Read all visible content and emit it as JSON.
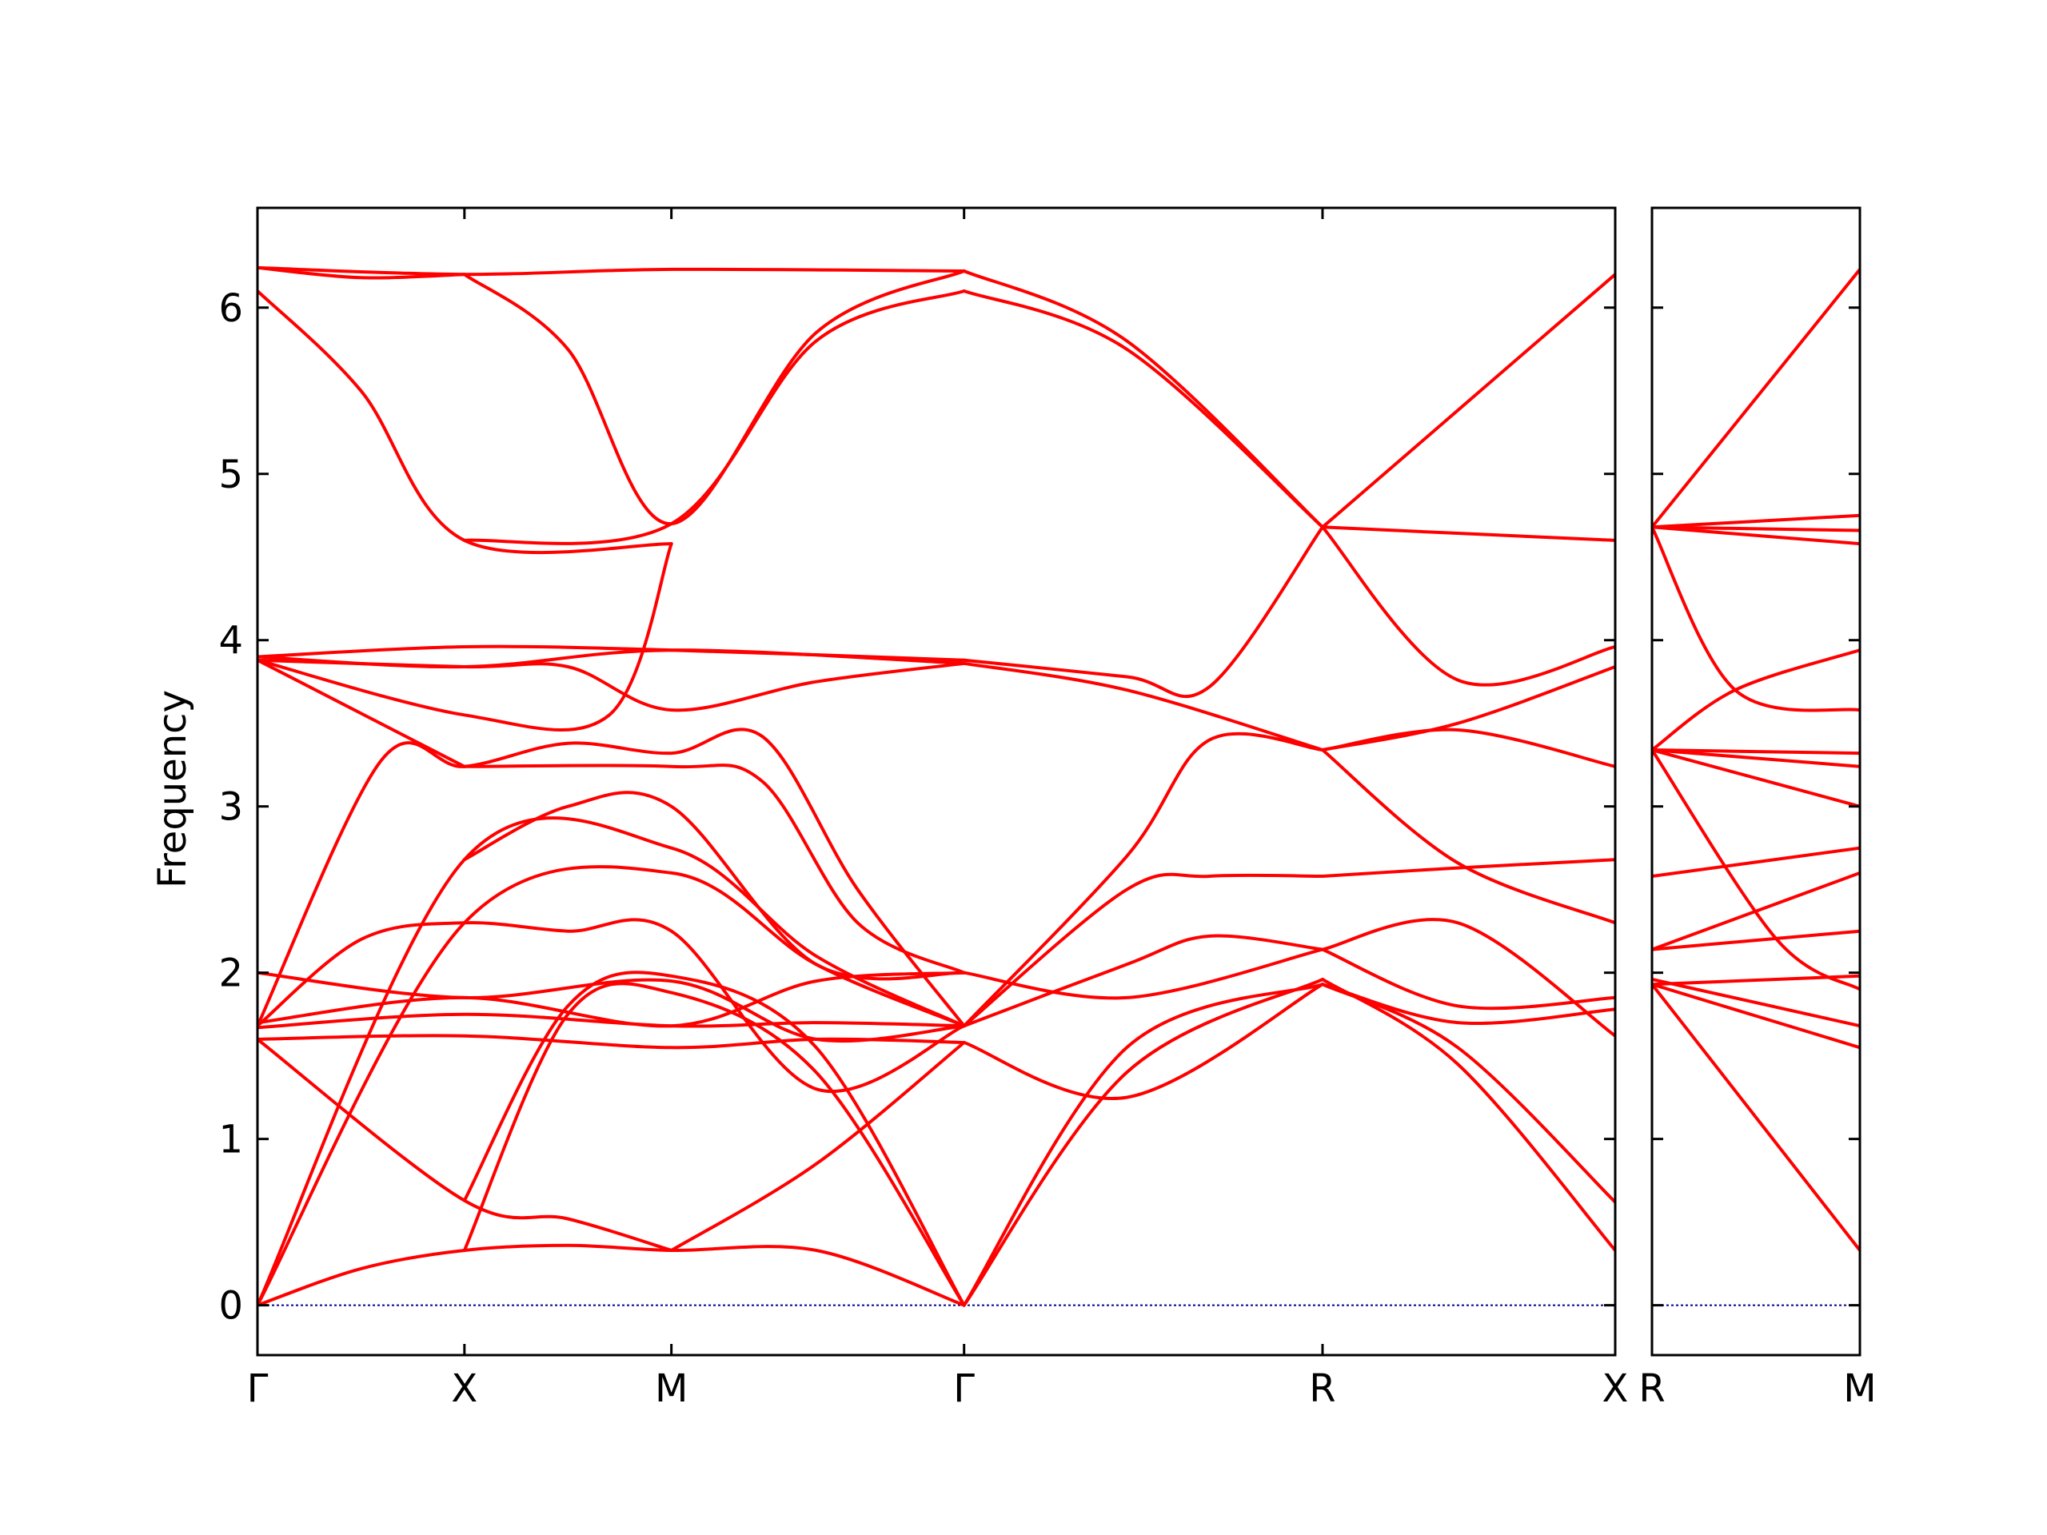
{
  "chart_data": {
    "type": "line",
    "ylabel": "Frequency",
    "ylim": [
      -0.3,
      6.6
    ],
    "yticks": [
      0,
      1,
      2,
      3,
      4,
      5,
      6
    ],
    "y_tick_labels": [
      "0",
      "1",
      "2",
      "3",
      "4",
      "5",
      "6"
    ],
    "grid": false,
    "legend": false,
    "line_color": "#ff0000",
    "zero_line_color": "#00008b",
    "panels": [
      {
        "path_ticks": [
          {
            "label": "Γ",
            "pos": 0
          },
          {
            "label": "X",
            "pos": 0.5
          },
          {
            "label": "M",
            "pos": 1.0
          },
          {
            "label": "Γ",
            "pos": 1.7071
          },
          {
            "label": "R",
            "pos": 2.5731
          },
          {
            "label": "X",
            "pos": 3.2802
          }
        ],
        "xlim": [
          0,
          3.2802
        ],
        "bands": [
          [
            [
              0,
              0
            ],
            [
              0.25,
              0.22
            ],
            [
              0.5,
              0.33
            ],
            [
              0.75,
              0.36
            ],
            [
              1.0,
              0.33
            ],
            [
              1.35,
              0.33
            ],
            [
              1.7071,
              0.0
            ]
          ],
          [
            [
              0,
              0
            ],
            [
              0.5,
              2.3
            ],
            [
              1.0,
              2.6
            ],
            [
              1.35,
              2.05
            ],
            [
              1.7071,
              1.68
            ]
          ],
          [
            [
              0,
              0
            ],
            [
              0.5,
              2.68
            ],
            [
              1.0,
              2.75
            ],
            [
              1.35,
              2.1
            ],
            [
              1.7071,
              1.68
            ]
          ],
          [
            [
              0,
              1.6
            ],
            [
              0.5,
              0.63
            ],
            [
              0.75,
              0.52
            ],
            [
              1.0,
              0.33
            ]
          ],
          [
            [
              0.5,
              0.33
            ],
            [
              0.75,
              1.75
            ],
            [
              1.0,
              1.88
            ],
            [
              1.35,
              1.4
            ],
            [
              1.7071,
              0.0
            ]
          ],
          [
            [
              0.5,
              0.63
            ],
            [
              0.75,
              1.8
            ],
            [
              1.0,
              1.98
            ],
            [
              1.35,
              1.55
            ],
            [
              1.7071,
              0.0
            ]
          ],
          [
            [
              1.0,
              0.33
            ],
            [
              1.35,
              0.85
            ],
            [
              1.7071,
              1.58
            ]
          ],
          [
            [
              0,
              1.6
            ],
            [
              0.5,
              1.62
            ],
            [
              1.0,
              1.55
            ],
            [
              1.35,
              1.6
            ],
            [
              1.7071,
              1.58
            ]
          ],
          [
            [
              0,
              1.67
            ],
            [
              0.5,
              1.75
            ],
            [
              1.0,
              1.68
            ],
            [
              1.35,
              1.7
            ],
            [
              1.7071,
              1.68
            ]
          ],
          [
            [
              0,
              1.7
            ],
            [
              0.5,
              1.85
            ],
            [
              1.0,
              1.68
            ],
            [
              1.35,
              1.95
            ],
            [
              1.7071,
              2.0
            ]
          ],
          [
            [
              0,
              2.0
            ],
            [
              0.5,
              1.85
            ],
            [
              1.0,
              1.95
            ],
            [
              1.35,
              1.6
            ],
            [
              1.7071,
              1.68
            ]
          ],
          [
            [
              0,
              1.68
            ],
            [
              0.25,
              2.2
            ],
            [
              0.5,
              2.3
            ],
            [
              0.75,
              2.25
            ],
            [
              1.0,
              2.25
            ],
            [
              1.35,
              1.3
            ],
            [
              1.7071,
              1.68
            ]
          ],
          [
            [
              0,
              1.68
            ],
            [
              0.3,
              3.28
            ],
            [
              0.5,
              3.24
            ],
            [
              0.75,
              3.38
            ],
            [
              1.0,
              3.32
            ],
            [
              1.22,
              3.42
            ],
            [
              1.45,
              2.5
            ],
            [
              1.7071,
              1.68
            ]
          ],
          [
            [
              0.5,
              3.24
            ],
            [
              1.0,
              3.24
            ],
            [
              1.22,
              3.15
            ],
            [
              1.45,
              2.3
            ],
            [
              1.7071,
              2.0
            ]
          ],
          [
            [
              0.5,
              2.68
            ],
            [
              0.75,
              3.0
            ],
            [
              1.0,
              3.0
            ],
            [
              1.35,
              2.05
            ],
            [
              1.7071,
              2.0
            ]
          ],
          [
            [
              0,
              3.88
            ],
            [
              0.5,
              3.24
            ]
          ],
          [
            [
              0,
              3.88
            ],
            [
              0.5,
              3.55
            ],
            [
              0.85,
              3.55
            ],
            [
              1.0,
              4.58
            ]
          ],
          [
            [
              0,
              3.88
            ],
            [
              0.5,
              3.84
            ],
            [
              0.75,
              3.84
            ],
            [
              1.0,
              3.58
            ],
            [
              1.35,
              3.75
            ],
            [
              1.7071,
              3.86
            ]
          ],
          [
            [
              0,
              3.9
            ],
            [
              0.5,
              3.96
            ],
            [
              1.0,
              3.94
            ],
            [
              1.7071,
              3.88
            ]
          ],
          [
            [
              0,
              3.9
            ],
            [
              0.5,
              3.84
            ],
            [
              1.0,
              3.94
            ],
            [
              1.7071,
              3.86
            ]
          ],
          [
            [
              0,
              6.1
            ],
            [
              0.25,
              5.5
            ],
            [
              0.5,
              4.6
            ],
            [
              1.0,
              4.58
            ]
          ],
          [
            [
              0,
              6.24
            ],
            [
              0.5,
              6.2
            ],
            [
              1.0,
              6.23
            ],
            [
              1.7071,
              6.22
            ]
          ],
          [
            [
              0,
              6.24
            ],
            [
              0.25,
              6.18
            ],
            [
              0.5,
              6.2
            ]
          ],
          [
            [
              0.5,
              6.2
            ],
            [
              0.75,
              5.75
            ],
            [
              1.0,
              4.7
            ],
            [
              1.35,
              5.85
            ],
            [
              1.7071,
              6.22
            ]
          ],
          [
            [
              0.5,
              4.6
            ],
            [
              1.0,
              4.7
            ],
            [
              1.35,
              5.8
            ],
            [
              1.7071,
              6.1
            ]
          ],
          [
            [
              1.7071,
              6.22
            ],
            [
              2.1,
              5.8
            ],
            [
              2.5731,
              4.68
            ]
          ],
          [
            [
              1.7071,
              6.1
            ],
            [
              2.1,
              5.75
            ],
            [
              2.5731,
              4.68
            ]
          ],
          [
            [
              1.7071,
              3.88
            ],
            [
              2.1,
              3.78
            ],
            [
              2.3,
              3.72
            ],
            [
              2.5731,
              4.68
            ]
          ],
          [
            [
              1.7071,
              3.86
            ],
            [
              2.1,
              3.7
            ],
            [
              2.5731,
              3.34
            ]
          ],
          [
            [
              1.7071,
              1.68
            ],
            [
              2.1,
              2.7
            ],
            [
              2.3,
              3.4
            ],
            [
              2.5731,
              3.34
            ]
          ],
          [
            [
              1.7071,
              1.68
            ],
            [
              2.1,
              2.5
            ],
            [
              2.3,
              2.58
            ],
            [
              2.5731,
              2.58
            ]
          ],
          [
            [
              1.7071,
              1.68
            ],
            [
              2.1,
              2.05
            ],
            [
              2.3,
              2.22
            ],
            [
              2.5731,
              2.14
            ]
          ],
          [
            [
              1.7071,
              2.0
            ],
            [
              2.1,
              1.85
            ],
            [
              2.5731,
              2.14
            ]
          ],
          [
            [
              1.7071,
              1.58
            ],
            [
              2.1,
              1.25
            ],
            [
              2.5731,
              1.93
            ]
          ],
          [
            [
              1.7071,
              0.0
            ],
            [
              2.1,
              1.4
            ],
            [
              2.5731,
              1.96
            ]
          ],
          [
            [
              1.7071,
              0.0
            ],
            [
              2.1,
              1.55
            ],
            [
              2.5731,
              1.93
            ]
          ],
          [
            [
              2.5731,
              4.68
            ],
            [
              3.2802,
              4.6
            ]
          ],
          [
            [
              2.5731,
              4.68
            ],
            [
              2.9,
              3.76
            ],
            [
              3.2802,
              3.96
            ]
          ],
          [
            [
              2.5731,
              4.68
            ],
            [
              3.2802,
              6.2
            ]
          ],
          [
            [
              2.5731,
              3.34
            ],
            [
              2.9,
              3.46
            ],
            [
              3.2802,
              3.24
            ]
          ],
          [
            [
              2.5731,
              3.34
            ],
            [
              2.9,
              3.5
            ],
            [
              3.2802,
              3.84
            ]
          ],
          [
            [
              2.5731,
              3.34
            ],
            [
              2.9,
              2.66
            ],
            [
              3.2802,
              2.3
            ]
          ],
          [
            [
              2.5731,
              2.58
            ],
            [
              2.9,
              2.63
            ],
            [
              3.2802,
              2.68
            ]
          ],
          [
            [
              2.5731,
              2.14
            ],
            [
              2.9,
              2.3
            ],
            [
              3.2802,
              1.62
            ]
          ],
          [
            [
              2.5731,
              2.14
            ],
            [
              2.9,
              1.8
            ],
            [
              3.2802,
              1.85
            ]
          ],
          [
            [
              2.5731,
              1.93
            ],
            [
              2.9,
              1.55
            ],
            [
              3.2802,
              0.62
            ]
          ],
          [
            [
              2.5731,
              1.96
            ],
            [
              2.9,
              1.45
            ],
            [
              3.2802,
              0.33
            ]
          ],
          [
            [
              2.5731,
              1.93
            ],
            [
              2.9,
              1.7
            ],
            [
              3.2802,
              1.78
            ]
          ]
        ]
      },
      {
        "path_ticks": [
          {
            "label": "R",
            "pos": 0
          },
          {
            "label": "M",
            "pos": 0.5
          }
        ],
        "xlim": [
          0,
          0.5
        ],
        "bands": [
          [
            [
              0,
              4.68
            ],
            [
              0.5,
              6.23
            ]
          ],
          [
            [
              0,
              4.68
            ],
            [
              0.5,
              4.75
            ]
          ],
          [
            [
              0,
              4.68
            ],
            [
              0.5,
              4.66
            ]
          ],
          [
            [
              0,
              4.68
            ],
            [
              0.5,
              4.58
            ]
          ],
          [
            [
              0,
              4.68
            ],
            [
              0.2,
              3.7
            ],
            [
              0.5,
              3.58
            ]
          ],
          [
            [
              0,
              3.34
            ],
            [
              0.2,
              3.7
            ],
            [
              0.5,
              3.94
            ]
          ],
          [
            [
              0,
              3.34
            ],
            [
              0.5,
              3.32
            ]
          ],
          [
            [
              0,
              3.34
            ],
            [
              0.5,
              3.24
            ]
          ],
          [
            [
              0,
              3.34
            ],
            [
              0.5,
              3.0
            ]
          ],
          [
            [
              0,
              3.34
            ],
            [
              0.3,
              2.2
            ],
            [
              0.5,
              1.9
            ]
          ],
          [
            [
              0,
              2.58
            ],
            [
              0.5,
              2.75
            ]
          ],
          [
            [
              0,
              2.14
            ],
            [
              0.5,
              2.6
            ]
          ],
          [
            [
              0,
              2.14
            ],
            [
              0.5,
              2.25
            ]
          ],
          [
            [
              0,
              1.93
            ],
            [
              0.5,
              1.98
            ]
          ],
          [
            [
              0,
              1.96
            ],
            [
              0.5,
              1.68
            ]
          ],
          [
            [
              0,
              1.93
            ],
            [
              0.5,
              1.55
            ]
          ],
          [
            [
              0,
              1.93
            ],
            [
              0.5,
              0.33
            ]
          ]
        ]
      }
    ]
  }
}
